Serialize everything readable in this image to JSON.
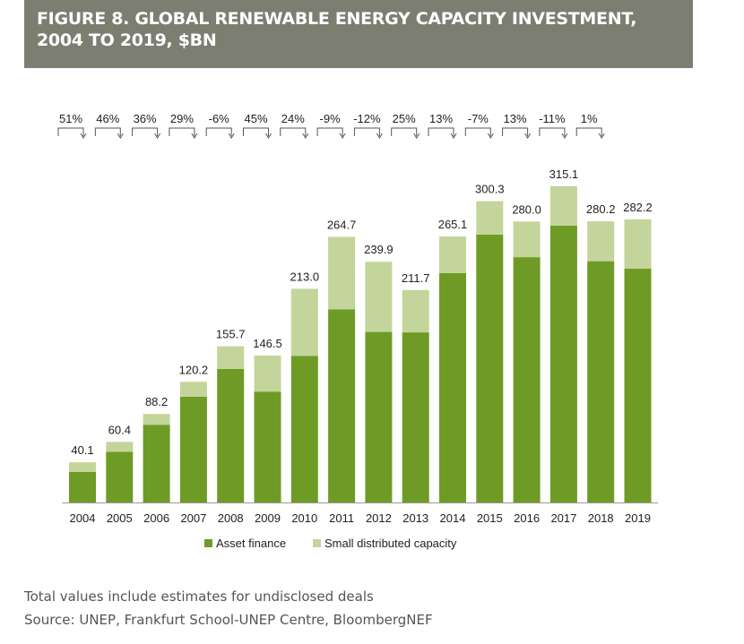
{
  "figure": {
    "title": "FIGURE 8. GLOBAL RENEWABLE ENERGY CAPACITY INVESTMENT, 2004 TO 2019, $BN",
    "footnotes": [
      "Total values include estimates for undisclosed deals",
      "Source: UNEP, Frankfurt School-UNEP Centre, BloombergNEF"
    ]
  },
  "chart_data": {
    "type": "bar",
    "stacked": true,
    "categories": [
      "2004",
      "2005",
      "2006",
      "2007",
      "2008",
      "2009",
      "2010",
      "2011",
      "2012",
      "2013",
      "2014",
      "2015",
      "2016",
      "2017",
      "2018",
      "2019"
    ],
    "series": [
      {
        "name": "Asset finance",
        "color": "#6e9b26",
        "values": [
          30.5,
          50.5,
          77.5,
          105.5,
          133.0,
          110.5,
          146.0,
          192.5,
          170.0,
          169.5,
          228.5,
          267.0,
          244.5,
          276.0,
          240.5,
          233.0
        ]
      },
      {
        "name": "Small distributed capacity",
        "color": "#c3d59b",
        "values": [
          9.6,
          9.9,
          10.7,
          14.7,
          22.7,
          36.0,
          67.0,
          72.2,
          69.9,
          42.2,
          36.6,
          33.3,
          35.5,
          39.1,
          39.7,
          49.2
        ]
      }
    ],
    "totals": [
      "40.1",
      "60.4",
      "88.2",
      "120.2",
      "155.7",
      "146.5",
      "213.0",
      "264.7",
      "239.9",
      "211.7",
      "265.1",
      "300.3",
      "280.0",
      "315.1",
      "280.2",
      "282.2"
    ],
    "growth_labels": [
      "51%",
      "46%",
      "36%",
      "29%",
      "-6%",
      "45%",
      "24%",
      "-9%",
      "-12%",
      "25%",
      "13%",
      "-7%",
      "13%",
      "-11%",
      "1%"
    ],
    "ylim": [
      0,
      350
    ],
    "grid": false,
    "legend_position": "bottom"
  }
}
